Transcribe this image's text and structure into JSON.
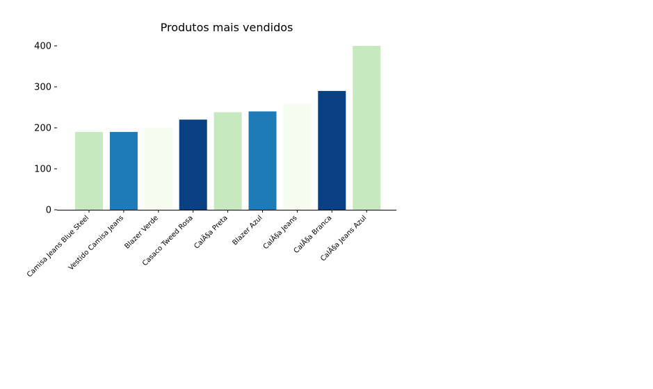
{
  "chart_data": {
    "type": "bar",
    "title": "Produtos mais vendidos",
    "xlabel": "",
    "ylabel": "",
    "categories": [
      "Camisa Jeans Blue Steel",
      "Vestido Camisa Jeans",
      "Blazer Verde",
      "Casaco Tweed Rosa",
      "CalÃ§a Preta",
      "Blazer Azul",
      "CalÃ§a Jeans",
      "CalÃ§a Branca",
      "CalÃ§a Jeans Azul"
    ],
    "values": [
      190,
      190,
      200,
      220,
      238,
      240,
      258,
      290,
      400
    ],
    "bar_colors": [
      "#c7e9c0",
      "#1f7bb8",
      "#f7fcf0",
      "#084081",
      "#c7e9c0",
      "#1f7bb8",
      "#f7fcf0",
      "#084081",
      "#c7e9c0"
    ],
    "ylim": [
      0,
      400
    ],
    "yticks": [
      0,
      100,
      200,
      300,
      400
    ],
    "grid": false,
    "legend": "none"
  }
}
